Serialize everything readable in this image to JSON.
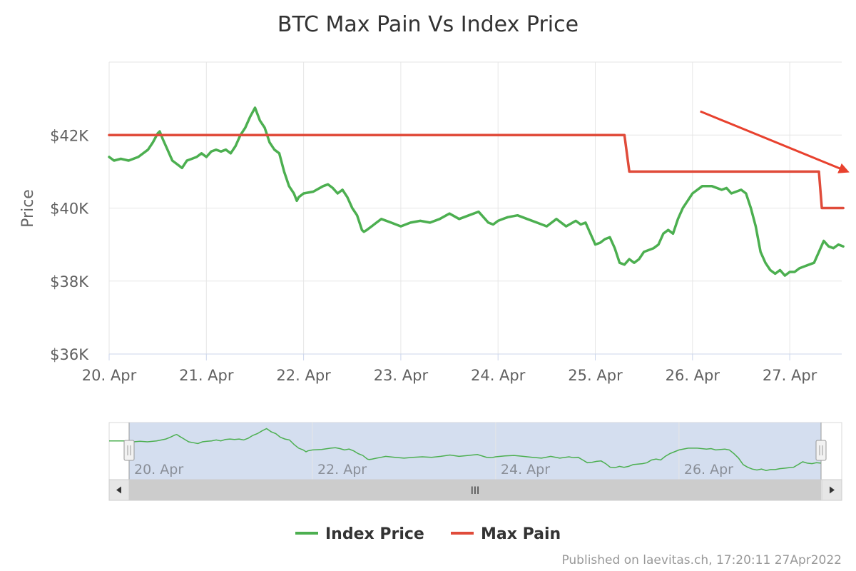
{
  "chart_data": {
    "type": "line",
    "title": "BTC Max Pain Vs Index Price",
    "ylabel": "Price",
    "xlabel": "",
    "ylim": [
      36000,
      44000
    ],
    "xlim": [
      0,
      7.55
    ],
    "y_ticks": [
      {
        "value": 36000,
        "label": "$36K"
      },
      {
        "value": 38000,
        "label": "$38K"
      },
      {
        "value": 40000,
        "label": "$40K"
      },
      {
        "value": 42000,
        "label": "$42K"
      }
    ],
    "x_ticks": [
      {
        "value": 0,
        "label": "20. Apr"
      },
      {
        "value": 1,
        "label": "21. Apr"
      },
      {
        "value": 2,
        "label": "22. Apr"
      },
      {
        "value": 3,
        "label": "23. Apr"
      },
      {
        "value": 4,
        "label": "24. Apr"
      },
      {
        "value": 5,
        "label": "25. Apr"
      },
      {
        "value": 6,
        "label": "26. Apr"
      },
      {
        "value": 7,
        "label": "27. Apr"
      }
    ],
    "grid": true,
    "legend_position": "bottom-center",
    "series": [
      {
        "name": "Index Price",
        "color": "#4caf50",
        "x": [
          0,
          0.05,
          0.12,
          0.2,
          0.3,
          0.4,
          0.45,
          0.5,
          0.52,
          0.55,
          0.6,
          0.65,
          0.7,
          0.75,
          0.8,
          0.85,
          0.9,
          0.95,
          1.0,
          1.05,
          1.1,
          1.15,
          1.2,
          1.25,
          1.3,
          1.35,
          1.4,
          1.45,
          1.5,
          1.55,
          1.6,
          1.65,
          1.7,
          1.75,
          1.8,
          1.85,
          1.9,
          1.93,
          1.95,
          2.0,
          2.1,
          2.2,
          2.25,
          2.3,
          2.35,
          2.4,
          2.45,
          2.5,
          2.55,
          2.6,
          2.62,
          2.65,
          2.7,
          2.75,
          2.8,
          2.9,
          3.0,
          3.1,
          3.2,
          3.3,
          3.4,
          3.5,
          3.6,
          3.7,
          3.8,
          3.9,
          3.95,
          4.0,
          4.05,
          4.1,
          4.2,
          4.3,
          4.4,
          4.5,
          4.6,
          4.7,
          4.8,
          4.85,
          4.9,
          4.95,
          5.0,
          5.05,
          5.1,
          5.15,
          5.2,
          5.25,
          5.3,
          5.35,
          5.4,
          5.45,
          5.5,
          5.6,
          5.65,
          5.7,
          5.75,
          5.8,
          5.85,
          5.9,
          5.95,
          6.0,
          6.1,
          6.2,
          6.3,
          6.35,
          6.4,
          6.5,
          6.55,
          6.6,
          6.65,
          6.7,
          6.75,
          6.8,
          6.85,
          6.9,
          6.95,
          7.0,
          7.05,
          7.1,
          7.15,
          7.2,
          7.25,
          7.3,
          7.35,
          7.4,
          7.45,
          7.5,
          7.55
        ],
        "values": [
          41400,
          41300,
          41350,
          41300,
          41400,
          41600,
          41800,
          42050,
          42100,
          41900,
          41600,
          41300,
          41200,
          41100,
          41300,
          41350,
          41400,
          41500,
          41400,
          41550,
          41600,
          41550,
          41600,
          41500,
          41700,
          42000,
          42200,
          42500,
          42750,
          42400,
          42200,
          41800,
          41600,
          41500,
          41000,
          40600,
          40400,
          40200,
          40300,
          40400,
          40450,
          40600,
          40650,
          40550,
          40400,
          40500,
          40300,
          40000,
          39800,
          39400,
          39350,
          39400,
          39500,
          39600,
          39700,
          39600,
          39500,
          39600,
          39650,
          39600,
          39700,
          39850,
          39700,
          39800,
          39900,
          39600,
          39550,
          39650,
          39700,
          39750,
          39800,
          39700,
          39600,
          39500,
          39700,
          39500,
          39650,
          39550,
          39600,
          39300,
          39000,
          39050,
          39150,
          39200,
          38900,
          38500,
          38450,
          38600,
          38500,
          38600,
          38800,
          38900,
          39000,
          39300,
          39400,
          39300,
          39700,
          40000,
          40200,
          40400,
          40600,
          40600,
          40500,
          40550,
          40400,
          40500,
          40400,
          40000,
          39500,
          38800,
          38500,
          38300,
          38200,
          38300,
          38150,
          38250,
          38250,
          38350,
          38400,
          38450,
          38500,
          38800,
          39100,
          38950,
          38900,
          39000,
          38950
        ]
      },
      {
        "name": "Max Pain",
        "color": "#e04b3a",
        "x": [
          0,
          5.3,
          5.35,
          7.3,
          7.33,
          7.55
        ],
        "values": [
          42000,
          42000,
          41000,
          41000,
          40000,
          40000
        ]
      }
    ],
    "navigator": {
      "x_labels": [
        {
          "value": 0,
          "label": "20. Apr"
        },
        {
          "value": 2,
          "label": "22. Apr"
        },
        {
          "value": 4,
          "label": "24. Apr"
        },
        {
          "value": 6,
          "label": "26. Apr"
        }
      ],
      "scrollbar_grip": "III"
    },
    "annotations": [
      {
        "type": "arrow",
        "color": "#e8412e",
        "from": {
          "x": 6.08,
          "y": 42650
        },
        "to": {
          "x": 7.55,
          "y": 41000
        }
      }
    ],
    "credit": "Published on laevitas.ch, 17:20:11 27Apr2022"
  }
}
